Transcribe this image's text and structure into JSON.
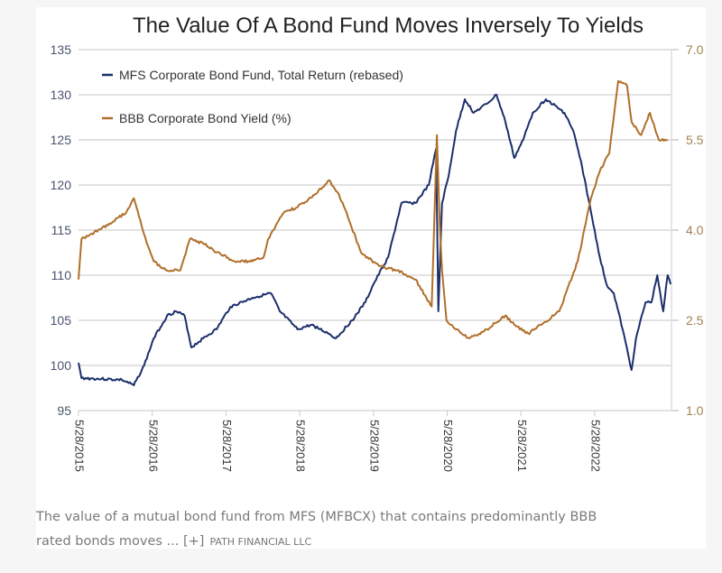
{
  "chart_data": {
    "type": "line",
    "title": "The Value Of A Bond Fund Moves Inversely To Yields",
    "xlim": [
      2015.41,
      8.0
    ],
    "x_ticks": [
      2015.41,
      2016.41,
      2017.41,
      2018.41,
      2019.41,
      2020.41,
      2021.41,
      2022.41
    ],
    "x_tick_labels": [
      "5/28/2015",
      "5/28/2016",
      "5/28/2017",
      "5/28/2018",
      "5/28/2019",
      "5/28/2020",
      "5/28/2021",
      "5/28/2022"
    ],
    "y_left": {
      "range": [
        95,
        135
      ],
      "ticks": [
        "95",
        "100",
        "105",
        "110",
        "115",
        "120",
        "125",
        "130",
        "135"
      ],
      "color": "#4a5470"
    },
    "y_right": {
      "range": [
        1.0,
        7.0
      ],
      "ticks": [
        "1.0",
        "2.5",
        "4.0",
        "5.5",
        "7.0"
      ],
      "color": "#a3824f"
    },
    "grid": true,
    "legend_position": "top-left",
    "series": [
      {
        "name": "MFS Corporate Bond Fund, Total Return (rebased)",
        "axis": "left",
        "color": "#1c2f6b",
        "x": [
          2015.41,
          2015.45,
          2015.72,
          2016.0,
          2016.16,
          2016.3,
          2016.43,
          2016.61,
          2016.73,
          2016.85,
          2016.94,
          2017.1,
          2017.28,
          2017.47,
          2017.77,
          2018.02,
          2018.14,
          2018.38,
          2018.57,
          2018.81,
          2018.9,
          2019.12,
          2019.3,
          2019.41,
          2019.61,
          2019.79,
          2019.98,
          2020.16,
          2020.26,
          2020.29,
          2020.34,
          2020.43,
          2020.53,
          2020.65,
          2020.77,
          2020.95,
          2021.08,
          2021.2,
          2021.32,
          2021.44,
          2021.57,
          2021.75,
          2022.0,
          2022.12,
          2022.24,
          2022.36,
          2022.48,
          2022.57,
          2022.67,
          2022.79,
          2022.91,
          2022.97,
          2023.1,
          2023.18,
          2023.26,
          2023.34,
          2023.4,
          2023.44
        ],
        "values": [
          100.3,
          98.6,
          98.5,
          98.4,
          97.8,
          100,
          103,
          105.5,
          106,
          105.5,
          102,
          103,
          104,
          106.5,
          107.5,
          108,
          106,
          104,
          104.5,
          103.5,
          103,
          105,
          107,
          109,
          112,
          118,
          118,
          120,
          124,
          106,
          118,
          121,
          126,
          129.5,
          128,
          129,
          130,
          127,
          123,
          125,
          128,
          129.5,
          128,
          126,
          122,
          117,
          112,
          109,
          108,
          104,
          99.5,
          103,
          107,
          107,
          110,
          106,
          110,
          109
        ]
      },
      {
        "name": "BBB Corporate Bond Yield (%)",
        "axis": "right",
        "color": "#b06f2a",
        "x": [
          2015.41,
          2015.45,
          2015.57,
          2015.81,
          2016.06,
          2016.16,
          2016.18,
          2016.3,
          2016.43,
          2016.61,
          2016.79,
          2016.92,
          2017.1,
          2017.28,
          2017.53,
          2017.77,
          2017.92,
          2017.98,
          2018.2,
          2018.38,
          2018.63,
          2018.81,
          2018.94,
          2019.06,
          2019.24,
          2019.49,
          2019.73,
          2019.98,
          2020.2,
          2020.27,
          2020.31,
          2020.34,
          2020.4,
          2020.53,
          2020.71,
          2020.95,
          2021.2,
          2021.32,
          2021.51,
          2021.69,
          2021.93,
          2022.18,
          2022.36,
          2022.48,
          2022.61,
          2022.73,
          2022.85,
          2022.91,
          2023.04,
          2023.16,
          2023.28,
          2023.4
        ],
        "values": [
          3.18,
          3.85,
          3.93,
          4.08,
          4.3,
          4.53,
          4.45,
          3.93,
          3.48,
          3.33,
          3.33,
          3.85,
          3.78,
          3.63,
          3.48,
          3.48,
          3.55,
          3.85,
          4.3,
          4.38,
          4.6,
          4.83,
          4.6,
          4.23,
          3.63,
          3.4,
          3.33,
          3.18,
          2.73,
          5.58,
          4.08,
          3.33,
          2.5,
          2.35,
          2.2,
          2.35,
          2.58,
          2.43,
          2.28,
          2.43,
          2.65,
          3.48,
          4.53,
          4.98,
          5.28,
          6.48,
          6.4,
          5.8,
          5.58,
          5.95,
          5.5,
          5.5
        ]
      }
    ]
  },
  "caption": {
    "line1": "The value of a mutual bond fund from MFS (MFBCX) that contains predominantly BBB",
    "line2": "rated bonds moves ... [+]",
    "source": "PATH FINANCIAL LLC"
  }
}
